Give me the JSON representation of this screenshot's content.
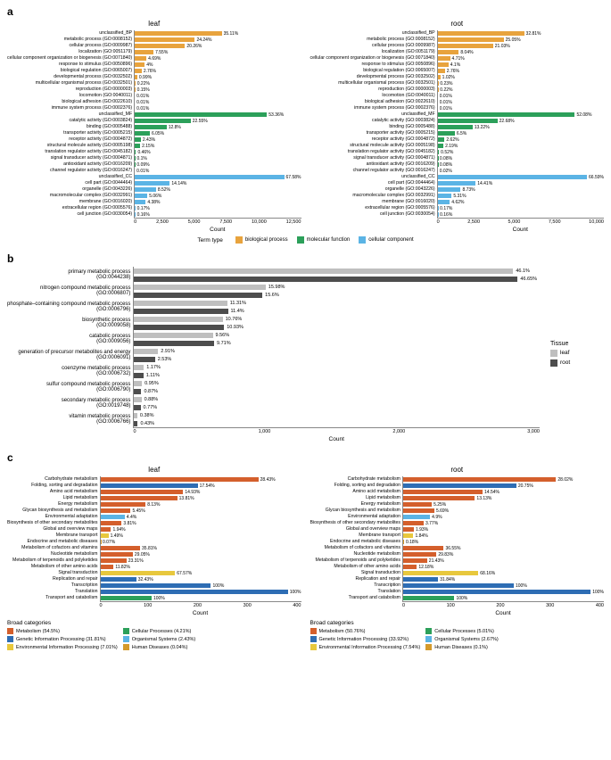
{
  "colors": {
    "biological_process": "#e8a33d",
    "molecular_function": "#2ca05a",
    "cellular_component": "#5bb4e5",
    "leaf": "#bfbfbf",
    "root": "#4d4d4d",
    "metabolism": "#d45f2c",
    "genetic": "#2e6db4",
    "environmental": "#e8c83d",
    "cellular_proc": "#2ca05a",
    "organismal": "#5bb4e5",
    "human": "#d49a2c",
    "axis": "#888888"
  },
  "panel_a": {
    "letter": "a",
    "subtitles": {
      "left": "leaf",
      "right": "root"
    },
    "x_title": "Count",
    "x_axis": {
      "left": {
        "max": 12500,
        "ticks": [
          "0",
          "2,500",
          "5,000",
          "7,500",
          "10,000",
          "12,500"
        ]
      },
      "right": {
        "max": 10000,
        "ticks": [
          "0",
          "2,500",
          "5,000",
          "7,500",
          "10,000"
        ]
      }
    },
    "legend": {
      "title": "Term type",
      "items": [
        {
          "color_key": "biological_process",
          "label": "biological process"
        },
        {
          "color_key": "molecular_function",
          "label": "molecular function"
        },
        {
          "color_key": "cellular_component",
          "label": "cellular component"
        }
      ]
    },
    "rows": [
      {
        "cat": "unclassified_BP",
        "color_key": "biological_process",
        "leaf_pct": "35.11%",
        "leaf_v": 6538,
        "root_pct": "32.81%",
        "root_v": 5200
      },
      {
        "cat": "metabolic process (GO:0008152)",
        "color_key": "biological_process",
        "leaf_pct": "24.24%",
        "leaf_v": 4514,
        "root_pct": "25.05%",
        "root_v": 3970
      },
      {
        "cat": "cellular process (GO:0009987)",
        "color_key": "biological_process",
        "leaf_pct": "20.26%",
        "leaf_v": 3773,
        "root_pct": "21.03%",
        "root_v": 3333
      },
      {
        "cat": "localization (GO:0051179)",
        "color_key": "biological_process",
        "leaf_pct": "7.55%",
        "leaf_v": 1406,
        "root_pct": "8.04%",
        "root_v": 1274
      },
      {
        "cat": "cellular component organization or biogenesis (GO:0071840)",
        "color_key": "biological_process",
        "leaf_pct": "4.69%",
        "leaf_v": 873,
        "root_pct": "4.71%",
        "root_v": 746
      },
      {
        "cat": "response to stimulus (GO:0050896)",
        "color_key": "biological_process",
        "leaf_pct": "4%",
        "leaf_v": 745,
        "root_pct": "4.1%",
        "root_v": 650
      },
      {
        "cat": "biological regulation (GO:0065007)",
        "color_key": "biological_process",
        "leaf_pct": "2.76%",
        "leaf_v": 514,
        "root_pct": "2.76%",
        "root_v": 437
      },
      {
        "cat": "developmental process (GO:0032502)",
        "color_key": "biological_process",
        "leaf_pct": "0.99%",
        "leaf_v": 184,
        "root_pct": "1.02%",
        "root_v": 162
      },
      {
        "cat": "multicellular organismal process (GO:0032501)",
        "color_key": "biological_process",
        "leaf_pct": "0.22%",
        "leaf_v": 41,
        "root_pct": "0.23%",
        "root_v": 36
      },
      {
        "cat": "reproduction (GO:0000003)",
        "color_key": "biological_process",
        "leaf_pct": "0.15%",
        "leaf_v": 28,
        "root_pct": "0.22%",
        "root_v": 35
      },
      {
        "cat": "locomotion (GO:0040011)",
        "color_key": "biological_process",
        "leaf_pct": "0.01%",
        "leaf_v": 2,
        "root_pct": "0.01%",
        "root_v": 2
      },
      {
        "cat": "biological adhesion (GO:0022610)",
        "color_key": "biological_process",
        "leaf_pct": "0.01%",
        "leaf_v": 2,
        "root_pct": "0.01%",
        "root_v": 2
      },
      {
        "cat": "immune system process (GO:0002376)",
        "color_key": "biological_process",
        "leaf_pct": "0.01%",
        "leaf_v": 2,
        "root_pct": "0.01%",
        "root_v": 2
      },
      {
        "cat": "unclassified_MF",
        "color_key": "molecular_function",
        "leaf_pct": "53.36%",
        "leaf_v": 9936,
        "root_pct": "52.08%",
        "root_v": 8254
      },
      {
        "cat": "catalytic activity (GO:0003824)",
        "color_key": "molecular_function",
        "leaf_pct": "22.55%",
        "leaf_v": 4199,
        "root_pct": "22.68%",
        "root_v": 3595
      },
      {
        "cat": "binding (GO:0005488)",
        "color_key": "molecular_function",
        "leaf_pct": "12.8%",
        "leaf_v": 2384,
        "root_pct": "13.22%",
        "root_v": 2095
      },
      {
        "cat": "transporter activity (GO:0005215)",
        "color_key": "molecular_function",
        "leaf_pct": "6.05%",
        "leaf_v": 1127,
        "root_pct": "6.5%",
        "root_v": 1030
      },
      {
        "cat": "receptor activity (GO:0004872)",
        "color_key": "molecular_function",
        "leaf_pct": "2.43%",
        "leaf_v": 452,
        "root_pct": "2.62%",
        "root_v": 415
      },
      {
        "cat": "structural molecule activity (GO:0005198)",
        "color_key": "molecular_function",
        "leaf_pct": "2.15%",
        "leaf_v": 400,
        "root_pct": "2.19%",
        "root_v": 347
      },
      {
        "cat": "translation regulator activity (GO:0045182)",
        "color_key": "molecular_function",
        "leaf_pct": "0.46%",
        "leaf_v": 86,
        "root_pct": "0.52%",
        "root_v": 82
      },
      {
        "cat": "signal transducer activity (GO:0004871)",
        "color_key": "molecular_function",
        "leaf_pct": "0.1%",
        "leaf_v": 19,
        "root_pct": "0.08%",
        "root_v": 13
      },
      {
        "cat": "antioxidant activity (GO:0016209)",
        "color_key": "molecular_function",
        "leaf_pct": "0.09%",
        "leaf_v": 17,
        "root_pct": "0.08%",
        "root_v": 13
      },
      {
        "cat": "channel regulator activity (GO:0016247)",
        "color_key": "molecular_function",
        "leaf_pct": "0.01%",
        "leaf_v": 2,
        "root_pct": "0.02%",
        "root_v": 3
      },
      {
        "cat": "unclassified_CC",
        "color_key": "cellular_component",
        "leaf_pct": "67.58%",
        "leaf_v": 12584,
        "root_pct": "66.59%",
        "root_v": 10554
      },
      {
        "cat": "cell part (GO:0044464)",
        "color_key": "cellular_component",
        "leaf_pct": "14.14%",
        "leaf_v": 2633,
        "root_pct": "14.41%",
        "root_v": 2284
      },
      {
        "cat": "organelle (GO:0043226)",
        "color_key": "cellular_component",
        "leaf_pct": "8.52%",
        "leaf_v": 1587,
        "root_pct": "8.73%",
        "root_v": 1384
      },
      {
        "cat": "macromolecular complex (GO:0032991)",
        "color_key": "cellular_component",
        "leaf_pct": "5.06%",
        "leaf_v": 942,
        "root_pct": "5.31%",
        "root_v": 842
      },
      {
        "cat": "membrane (GO:0016020)",
        "color_key": "cellular_component",
        "leaf_pct": "4.38%",
        "leaf_v": 816,
        "root_pct": "4.62%",
        "root_v": 732
      },
      {
        "cat": "extracellular region (GO:0005576)",
        "color_key": "cellular_component",
        "leaf_pct": "0.17%",
        "leaf_v": 32,
        "root_pct": "0.17%",
        "root_v": 27
      },
      {
        "cat": "cell junction (GO:0030054)",
        "color_key": "cellular_component",
        "leaf_pct": "0.16%",
        "leaf_v": 30,
        "root_pct": "0.16%",
        "root_v": 25
      }
    ]
  },
  "panel_b": {
    "letter": "b",
    "x_title": "Count",
    "x_axis": {
      "max": 3400,
      "ticks": [
        "0",
        "1,000",
        "2,000",
        "3,000"
      ]
    },
    "legend": {
      "title": "Tissue",
      "items": [
        {
          "color_key": "leaf",
          "label": "leaf"
        },
        {
          "color_key": "root",
          "label": "root"
        }
      ]
    },
    "rows": [
      {
        "cat1": "primary metabolic process",
        "cat2": "(GO:0044238)",
        "leaf_pct": "46.1%",
        "leaf_v": 3178,
        "root_pct": "46.65%",
        "root_v": 3216
      },
      {
        "cat1": "nitrogen compound metabolic process",
        "cat2": "(GO:0006807)",
        "leaf_pct": "15.98%",
        "leaf_v": 1102,
        "root_pct": "15.6%",
        "root_v": 1075
      },
      {
        "cat1": "phosphate–containing compound metabolic process",
        "cat2": "(GO:0006796)",
        "leaf_pct": "11.31%",
        "leaf_v": 780,
        "root_pct": "11.4%",
        "root_v": 786
      },
      {
        "cat1": "biosynthetic process",
        "cat2": "(GO:0009058)",
        "leaf_pct": "10.76%",
        "leaf_v": 742,
        "root_pct": "10.93%",
        "root_v": 754
      },
      {
        "cat1": "catabolic process",
        "cat2": "(GO:0009056)",
        "leaf_pct": "9.56%",
        "leaf_v": 659,
        "root_pct": "9.71%",
        "root_v": 670
      },
      {
        "cat1": "generation of precursor metabolites and energy",
        "cat2": "(GO:0006091)",
        "leaf_pct": "2.91%",
        "leaf_v": 201,
        "root_pct": "2.53%",
        "root_v": 174
      },
      {
        "cat1": "coenzyme metabolic process",
        "cat2": "(GO:0006732)",
        "leaf_pct": "1.17%",
        "leaf_v": 81,
        "root_pct": "1.11%",
        "root_v": 77
      },
      {
        "cat1": "sulfur compound metabolic process",
        "cat2": "(GO:0006790)",
        "leaf_pct": "0.95%",
        "leaf_v": 65,
        "root_pct": "0.87%",
        "root_v": 60
      },
      {
        "cat1": "secondary metabolic process",
        "cat2": "(GO:0019748)",
        "leaf_pct": "0.88%",
        "leaf_v": 61,
        "root_pct": "0.77%",
        "root_v": 53
      },
      {
        "cat1": "vitamin metabolic process",
        "cat2": "(GO:0006766)",
        "leaf_pct": "0.38%",
        "leaf_v": 26,
        "root_pct": "0.43%",
        "root_v": 30
      }
    ]
  },
  "panel_c": {
    "letter": "c",
    "subtitles": {
      "left": "leaf",
      "right": "root"
    },
    "x_title": "Count",
    "x_axis": {
      "left": {
        "max": 470,
        "ticks": [
          "0",
          "100",
          "200",
          "300",
          "400"
        ]
      },
      "right": {
        "max": 470,
        "ticks": [
          "0",
          "100",
          "200",
          "300",
          "400"
        ]
      }
    },
    "legend_leaf": {
      "title": "Broad categories",
      "col1": [
        {
          "color_key": "metabolism",
          "label": "Metabolism (54.5%)"
        },
        {
          "color_key": "genetic",
          "label": "Genetic Information Processing (31.81%)"
        },
        {
          "color_key": "environmental",
          "label": "Environmental Information Processing (7.01%)"
        }
      ],
      "col2": [
        {
          "color_key": "cellular_proc",
          "label": "Cellular Processes (4.21%)"
        },
        {
          "color_key": "organismal",
          "label": "Organismal Systems (2.43%)"
        },
        {
          "color_key": "human",
          "label": "Human Diseases (0.04%)"
        }
      ]
    },
    "legend_root": {
      "title": "Broad categories",
      "col1": [
        {
          "color_key": "metabolism",
          "label": "Metabolism (50.76%)"
        },
        {
          "color_key": "genetic",
          "label": "Genetic Information Processing (33.92%)"
        },
        {
          "color_key": "environmental",
          "label": "Environmental Information Processing (7.54%)"
        }
      ],
      "col2": [
        {
          "color_key": "cellular_proc",
          "label": "Cellular Processes (5.01%)"
        },
        {
          "color_key": "organismal",
          "label": "Organismal Systems (2.67%)"
        },
        {
          "color_key": "human",
          "label": "Human Diseases (0.1%)"
        }
      ]
    },
    "rows": [
      {
        "cat": "Carbohydrate metabolism",
        "color_key": "metabolism",
        "leaf_pct": "28.43%",
        "leaf_v": 370,
        "root_pct": "28.02%",
        "root_v": 358
      },
      {
        "cat": "Folding, sorting and degradation",
        "color_key": "genetic",
        "leaf_pct": "17.54%",
        "leaf_v": 228,
        "root_pct": "20.75%",
        "root_v": 265
      },
      {
        "cat": "Amino acid metabolism",
        "color_key": "metabolism",
        "leaf_pct": "14.93%",
        "leaf_v": 194,
        "root_pct": "14.54%",
        "root_v": 186
      },
      {
        "cat": "Lipid metabolism",
        "color_key": "metabolism",
        "leaf_pct": "13.81%",
        "leaf_v": 180,
        "root_pct": "13.13%",
        "root_v": 168
      },
      {
        "cat": "Energy metabolism",
        "color_key": "metabolism",
        "leaf_pct": "8.13%",
        "leaf_v": 106,
        "root_pct": "5.25%",
        "root_v": 67
      },
      {
        "cat": "Glycan biosynthesis and metabolism",
        "color_key": "metabolism",
        "leaf_pct": "5.45%",
        "leaf_v": 71,
        "root_pct": "5.69%",
        "root_v": 73
      },
      {
        "cat": "Environmental adaptation",
        "color_key": "organismal",
        "leaf_pct": "4.4%",
        "leaf_v": 57,
        "root_pct": "4.9%",
        "root_v": 63
      },
      {
        "cat": "Biosynthesis of other secondary metabolites",
        "color_key": "metabolism",
        "leaf_pct": "3.81%",
        "leaf_v": 50,
        "root_pct": "3.77%",
        "root_v": 48
      },
      {
        "cat": "Global and overview maps",
        "color_key": "metabolism",
        "leaf_pct": "1.94%",
        "leaf_v": 25,
        "root_pct": "1.93%",
        "root_v": 25
      },
      {
        "cat": "Membrane transport",
        "color_key": "environmental",
        "leaf_pct": "1.49%",
        "leaf_v": 19,
        "root_pct": "1.84%",
        "root_v": 24
      },
      {
        "cat": "Endocrine and metabolic diseases",
        "color_key": "human",
        "leaf_pct": "0.07%",
        "leaf_v": 1,
        "root_pct": "0.18%",
        "root_v": 2
      },
      {
        "cat": "Metabolism of cofactors and vitamins",
        "color_key": "metabolism",
        "leaf_pct": "35.81%",
        "leaf_v": 93,
        "root_pct": "36.55%",
        "root_v": 95
      },
      {
        "cat": "Nucleotide metabolism",
        "color_key": "metabolism",
        "leaf_pct": "29.05%",
        "leaf_v": 76,
        "root_pct": "29.83%",
        "root_v": 78
      },
      {
        "cat": "Metabolism of terpenoids and polyketides",
        "color_key": "metabolism",
        "leaf_pct": "23.31%",
        "leaf_v": 61,
        "root_pct": "21.43%",
        "root_v": 56
      },
      {
        "cat": "Metabolism of other amino acids",
        "color_key": "metabolism",
        "leaf_pct": "11.82%",
        "leaf_v": 31,
        "root_pct": "12.18%",
        "root_v": 32
      },
      {
        "cat": "Signal transduction",
        "color_key": "environmental",
        "leaf_pct": "67.57%",
        "leaf_v": 175,
        "root_pct": "68.16%",
        "root_v": 176
      },
      {
        "cat": "Replication and repair",
        "color_key": "genetic",
        "leaf_pct": "32.43%",
        "leaf_v": 84,
        "root_pct": "31.84%",
        "root_v": 82
      },
      {
        "cat": "Transcription",
        "color_key": "genetic",
        "leaf_pct": "100%",
        "leaf_v": 259,
        "root_pct": "100%",
        "root_v": 259
      },
      {
        "cat": "Translation",
        "color_key": "genetic",
        "leaf_pct": "100%",
        "leaf_v": 465,
        "root_pct": "100%",
        "root_v": 465
      },
      {
        "cat": "Transport and catabolism",
        "color_key": "cellular_proc",
        "leaf_pct": "100%",
        "leaf_v": 120,
        "root_pct": "100%",
        "root_v": 120
      }
    ]
  }
}
